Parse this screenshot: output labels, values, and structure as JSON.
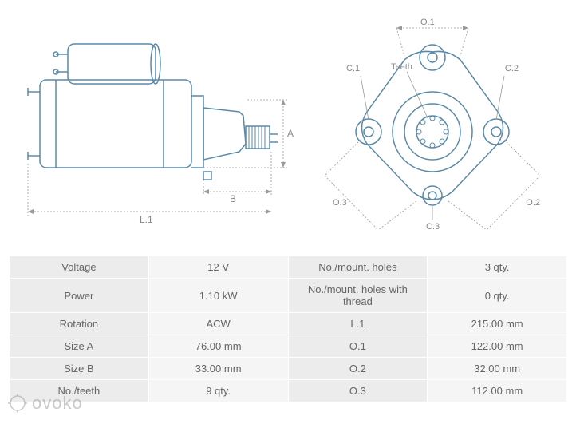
{
  "diagram": {
    "stroke_color": "#5a8aa8",
    "dimline_color": "#999999",
    "labels": {
      "A": "A",
      "B": "B",
      "L1": "L.1",
      "O1": "O.1",
      "O2": "O.2",
      "O3": "O.3",
      "C1": "C.1",
      "C2": "C.2",
      "C3": "C.3",
      "Teeth": "Teeth"
    }
  },
  "table": {
    "rows": [
      {
        "l1": "Voltage",
        "v1": "12 V",
        "l2": "No./mount. holes",
        "v2": "3 qty."
      },
      {
        "l1": "Power",
        "v1": "1.10 kW",
        "l2": "No./mount. holes with thread",
        "v2": "0 qty."
      },
      {
        "l1": "Rotation",
        "v1": "ACW",
        "l2": "L.1",
        "v2": "215.00 mm"
      },
      {
        "l1": "Size A",
        "v1": "76.00 mm",
        "l2": "O.1",
        "v2": "122.00 mm"
      },
      {
        "l1": "Size B",
        "v1": "33.00 mm",
        "l2": "O.2",
        "v2": "32.00 mm"
      },
      {
        "l1": "No./teeth",
        "v1": "9 qty.",
        "l2": "O.3",
        "v2": "112.00 mm"
      }
    ]
  },
  "watermark": "ovoko"
}
